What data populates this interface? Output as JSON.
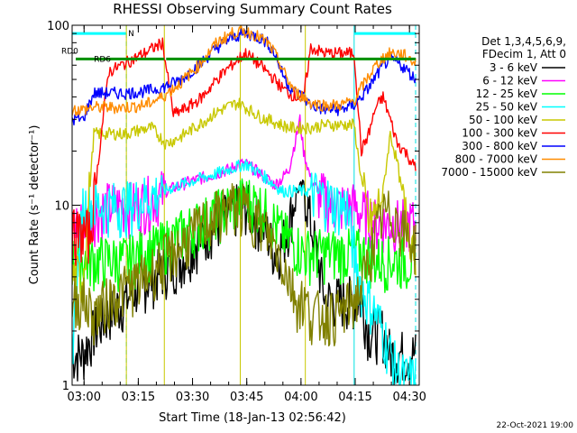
{
  "chart_data": {
    "type": "line",
    "title": "RHESSI Observing Summary Count Rates",
    "xlabel": "Start Time (18-Jan-13 02:56:42)",
    "ylabel": "Count Rate (s⁻¹ detector⁻¹)",
    "x_unit": "minutes after 02:56:42",
    "xlim": [
      0,
      96
    ],
    "ylim": [
      1,
      100
    ],
    "y_scale": "log",
    "x_ticks": [
      {
        "label": "03:00",
        "x": 3.3
      },
      {
        "label": "03:15",
        "x": 18.3
      },
      {
        "label": "03:30",
        "x": 33.3
      },
      {
        "label": "03:45",
        "x": 48.3
      },
      {
        "label": "04:00",
        "x": 63.3
      },
      {
        "label": "04:15",
        "x": 78.3
      },
      {
        "label": "04:30",
        "x": 93.3
      }
    ],
    "y_ticks": [
      {
        "label": "1",
        "y": 1
      },
      {
        "label": "10",
        "y": 10
      },
      {
        "label": "100",
        "y": 100
      }
    ],
    "legend_header": [
      "Det 1,3,4,5,6,9,",
      "FDecim 1, Att 0"
    ],
    "legend_position": "right",
    "annotations": [
      "N",
      "RD0",
      "RD6"
    ],
    "footer_date": "22-Oct-2021 19:00",
    "night_intervals": [
      [
        0,
        15
      ],
      [
        78,
        95
      ]
    ],
    "saa_markers": [
      15,
      25.5,
      46.5,
      64.5
    ],
    "attenuator_bar": {
      "label": "RD0",
      "y": 65,
      "color": "#009000",
      "segments": [
        [
          1,
          25.5
        ],
        [
          26,
          95
        ]
      ]
    },
    "rd6_bar": {
      "label": "RD6",
      "y": 65,
      "color": "#009000"
    },
    "series": [
      {
        "name": "3 - 6 keV",
        "color": "#000000",
        "x": [
          0,
          3,
          6,
          10,
          15,
          18,
          22,
          26,
          30,
          35,
          40,
          44,
          46,
          48,
          50,
          52,
          54,
          56,
          58,
          60,
          62,
          64,
          66,
          68,
          70,
          72,
          74,
          76,
          78,
          80,
          82,
          84,
          86,
          88,
          90,
          92,
          95
        ],
        "y": [
          1.5,
          1.5,
          2,
          2.5,
          3,
          3.5,
          4,
          4.5,
          5,
          6.5,
          8,
          9,
          10,
          10,
          9,
          8,
          7,
          5.5,
          6,
          8,
          12,
          13,
          8,
          5,
          3,
          3,
          3,
          3,
          3,
          3,
          2,
          2,
          2,
          1.5,
          1.5,
          1.5,
          1.5
        ]
      },
      {
        "name": "6 - 12 keV",
        "color": "#ff00ff",
        "x": [
          0,
          3,
          6,
          10,
          15,
          18,
          22,
          26,
          30,
          35,
          40,
          44,
          46,
          48,
          50,
          52,
          54,
          56,
          58,
          60,
          62,
          63,
          64,
          66,
          68,
          70,
          72,
          74,
          76,
          78,
          80,
          82,
          84,
          86,
          88,
          90,
          92,
          95
        ],
        "y": [
          8,
          8,
          9,
          10,
          10,
          10,
          11,
          12,
          13,
          14,
          15,
          16,
          17,
          17,
          16,
          15,
          14,
          13,
          14,
          16,
          24,
          30,
          20,
          14,
          12,
          11,
          10,
          10,
          10,
          10,
          9,
          9,
          8,
          8,
          8,
          8,
          8,
          8
        ]
      },
      {
        "name": "12 - 25 keV",
        "color": "#00ff00",
        "x": [
          0,
          5,
          10,
          15,
          20,
          25,
          30,
          35,
          40,
          44,
          46,
          48,
          50,
          52,
          54,
          56,
          58,
          60,
          62,
          64,
          66,
          70,
          74,
          78,
          80,
          84,
          86,
          88,
          90,
          92,
          95
        ],
        "y": [
          5,
          5,
          5,
          5,
          5.5,
          6,
          7,
          8,
          9,
          10,
          10.5,
          11,
          10.5,
          10,
          9,
          8,
          7,
          6.5,
          6,
          5.5,
          5.5,
          5.5,
          5.5,
          5.5,
          5.5,
          5,
          5,
          5,
          5,
          5,
          5
        ]
      },
      {
        "name": "25 - 50 keV",
        "color": "#00ffff",
        "x": [
          0,
          3,
          6,
          10,
          15,
          20,
          25,
          30,
          35,
          40,
          44,
          46,
          48,
          50,
          52,
          54,
          56,
          58,
          60,
          62,
          64,
          66,
          70,
          74,
          76,
          78,
          80,
          82,
          84,
          86,
          88,
          90,
          92,
          95
        ],
        "y": [
          1.7,
          10,
          10,
          10,
          10,
          11,
          12,
          13,
          14,
          15,
          16,
          16.5,
          17,
          16,
          15,
          14,
          13,
          12,
          12,
          12,
          12,
          12,
          11,
          10,
          10,
          5.5,
          3.5,
          3,
          2.5,
          2,
          1.5,
          1.2,
          1.1,
          1.1
        ]
      },
      {
        "name": "50 - 100 keV",
        "color": "#c8c800",
        "x": [
          0,
          3,
          6,
          10,
          15,
          18,
          22,
          26,
          30,
          35,
          40,
          44,
          46,
          48,
          50,
          52,
          54,
          56,
          58,
          60,
          62,
          64,
          66,
          70,
          74,
          78,
          80,
          82,
          84,
          86,
          88,
          90,
          92,
          95
        ],
        "y": [
          4,
          4,
          25,
          25,
          25,
          26,
          27,
          22,
          24,
          28,
          33,
          36,
          37,
          35,
          33,
          31,
          30,
          29,
          28,
          27,
          27,
          27,
          27,
          28,
          28,
          28,
          14,
          8,
          9,
          12,
          25,
          17,
          9,
          6
        ]
      },
      {
        "name": "100 - 300 keV",
        "color": "#ff0000",
        "x": [
          0,
          5,
          10,
          15,
          20,
          25,
          28,
          32,
          36,
          40,
          44,
          46,
          48,
          50,
          52,
          54,
          56,
          58,
          60,
          62,
          64,
          66,
          70,
          74,
          78,
          80,
          82,
          84,
          86,
          88,
          90,
          92,
          95
        ],
        "y": [
          7,
          7,
          55,
          62,
          70,
          80,
          32,
          35,
          40,
          50,
          60,
          65,
          70,
          65,
          60,
          55,
          50,
          45,
          42,
          40,
          40,
          75,
          70,
          70,
          70,
          20,
          25,
          35,
          40,
          30,
          22,
          20,
          16
        ]
      },
      {
        "name": "300 - 800 keV",
        "color": "#0000ff",
        "x": [
          0,
          3,
          6,
          10,
          15,
          20,
          25,
          30,
          35,
          40,
          44,
          46,
          48,
          50,
          52,
          54,
          56,
          58,
          60,
          62,
          64,
          66,
          70,
          74,
          78,
          80,
          82,
          84,
          86,
          88,
          90,
          92,
          95
        ],
        "y": [
          30,
          30,
          42,
          42,
          42,
          43,
          45,
          50,
          60,
          75,
          85,
          88,
          90,
          88,
          85,
          80,
          70,
          55,
          46,
          42,
          40,
          36,
          34,
          34,
          36,
          40,
          45,
          52,
          60,
          65,
          62,
          58,
          50
        ]
      },
      {
        "name": "800 - 7000 keV",
        "color": "#ff8c00",
        "x": [
          0,
          3,
          6,
          10,
          15,
          20,
          25,
          30,
          35,
          40,
          44,
          46,
          48,
          50,
          52,
          54,
          56,
          58,
          60,
          62,
          64,
          66,
          70,
          74,
          78,
          80,
          82,
          84,
          86,
          88,
          90,
          92,
          95
        ],
        "y": [
          34,
          34,
          35,
          35,
          35,
          36,
          40,
          48,
          60,
          80,
          90,
          92,
          92,
          90,
          85,
          80,
          70,
          58,
          48,
          42,
          40,
          37,
          36,
          36,
          38,
          45,
          52,
          60,
          66,
          70,
          70,
          68,
          62
        ]
      },
      {
        "name": "7000 - 15000 keV",
        "color": "#808000",
        "x": [
          0,
          3,
          6,
          10,
          15,
          20,
          25,
          30,
          35,
          40,
          44,
          46,
          48,
          50,
          52,
          54,
          56,
          58,
          60,
          62,
          64,
          66,
          70,
          74,
          78,
          80,
          82,
          84,
          86,
          88,
          90,
          92,
          95
        ],
        "y": [
          3,
          3,
          2.5,
          3,
          3.5,
          4,
          5,
          6,
          7.5,
          9,
          10,
          10,
          9.5,
          9,
          8,
          7,
          6,
          5,
          4,
          3,
          3,
          2.5,
          2.5,
          2.5,
          3,
          3.5,
          5,
          7,
          9,
          9,
          8.5,
          7,
          6
        ]
      }
    ]
  }
}
